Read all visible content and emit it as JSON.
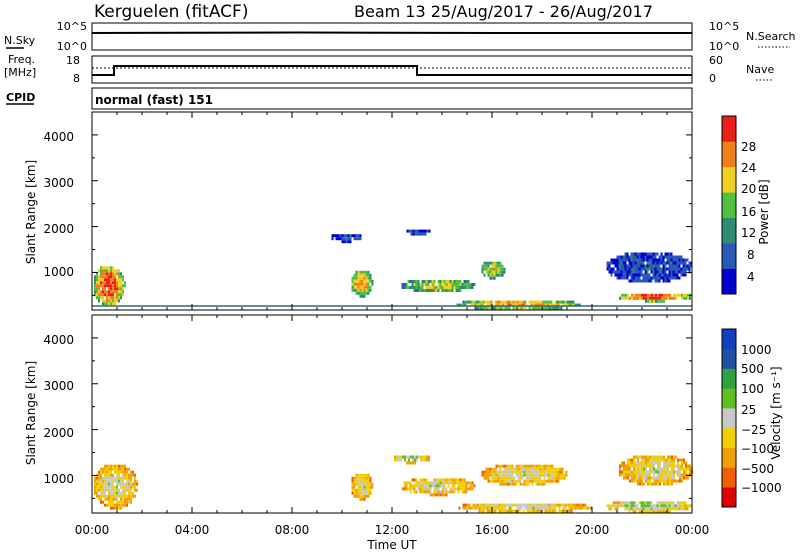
{
  "header": {
    "radar": "Kerguelen (fitACF)",
    "beam_info": "Beam 13 25/Aug/2017 - 26/Aug/2017"
  },
  "status": {
    "nsky_label": "N.Sky",
    "nsky_ticks": [
      "10^5",
      "10^0"
    ],
    "nsearch_label": "N.Search",
    "nsearch_ticks": [
      "10^5",
      "10^0"
    ],
    "freq_label": "Freq.",
    "freq_unit": "[MHz]",
    "freq_ticks": [
      "18",
      "8"
    ],
    "nave_label": "Nave",
    "nave_ticks": [
      "60",
      "0"
    ],
    "cpid_label": "CPID",
    "cpid_value": "normal (fast) 151"
  },
  "chart_data": [
    {
      "type": "heatmap",
      "name": "power",
      "ylabel": "Slant Range [km]",
      "ylim": [
        180,
        4500
      ],
      "yticks": [
        "4000",
        "3000",
        "2000",
        "1000"
      ],
      "colorbar_label": "Power [dB]",
      "colorbar_ticks": [
        "28",
        "24",
        "20",
        "16",
        "12",
        "8",
        "4"
      ],
      "colors": [
        "#0000d0",
        "#2858b8",
        "#2e8c70",
        "#50c040",
        "#f0d020",
        "#f08018",
        "#e82018"
      ],
      "blobs": [
        {
          "t0": 0.0,
          "t1": 1.3,
          "r0": 300,
          "r1": 1200,
          "level": 6
        },
        {
          "t0": 10.3,
          "t1": 11.2,
          "r0": 500,
          "r1": 1100,
          "level": 5
        },
        {
          "t0": 12.3,
          "t1": 15.3,
          "r0": 600,
          "r1": 900,
          "level": 4
        },
        {
          "t0": 15.5,
          "t1": 16.5,
          "r0": 900,
          "r1": 1300,
          "level": 4
        },
        {
          "t0": 14.5,
          "t1": 19.5,
          "r0": 220,
          "r1": 450,
          "level": 5
        },
        {
          "t0": 21.0,
          "t1": 24.0,
          "r0": 400,
          "r1": 600,
          "level": 6
        },
        {
          "t0": 20.5,
          "t1": 24.0,
          "r0": 800,
          "r1": 1500,
          "level": 1
        },
        {
          "t0": 9.5,
          "t1": 10.8,
          "r0": 1700,
          "r1": 1900,
          "level": 1
        },
        {
          "t0": 12.5,
          "t1": 13.5,
          "r0": 1850,
          "r1": 2000,
          "level": 1
        }
      ]
    },
    {
      "type": "heatmap",
      "name": "velocity",
      "ylabel": "Slant Range [km]",
      "ylim": [
        180,
        4500
      ],
      "yticks": [
        "4000",
        "3000",
        "2000",
        "1000"
      ],
      "xlabel": "Time UT",
      "xticks": [
        "00:00",
        "04:00",
        "08:00",
        "12:00",
        "16:00",
        "20:00",
        "00:00"
      ],
      "colorbar_label": "Velocity [m s⁻¹]",
      "colorbar_ticks": [
        "1000",
        "500",
        "100",
        "25",
        "−25",
        "−100",
        "−500",
        "−1000"
      ],
      "colors": [
        "#e00000",
        "#f06000",
        "#f0a000",
        "#f0d000",
        "#c8c8c8",
        "#60c020",
        "#30a040",
        "#2050a0",
        "#1040c0"
      ],
      "blobs": [
        {
          "t0": 0.0,
          "t1": 1.8,
          "r0": 300,
          "r1": 1300,
          "level": 4
        },
        {
          "t0": 10.3,
          "t1": 11.2,
          "r0": 500,
          "r1": 1100,
          "level": 4
        },
        {
          "t0": 12.3,
          "t1": 15.3,
          "r0": 600,
          "r1": 1000,
          "level": 4
        },
        {
          "t0": 15.5,
          "t1": 19.0,
          "r0": 800,
          "r1": 1300,
          "level": 4
        },
        {
          "t0": 14.5,
          "t1": 20.0,
          "r0": 220,
          "r1": 450,
          "level": 4
        },
        {
          "t0": 20.5,
          "t1": 24.0,
          "r0": 220,
          "r1": 500,
          "level": 5
        },
        {
          "t0": 21.0,
          "t1": 24.0,
          "r0": 800,
          "r1": 1500,
          "level": 4
        },
        {
          "t0": 12.0,
          "t1": 13.5,
          "r0": 1300,
          "r1": 1500,
          "level": 5
        }
      ]
    }
  ]
}
